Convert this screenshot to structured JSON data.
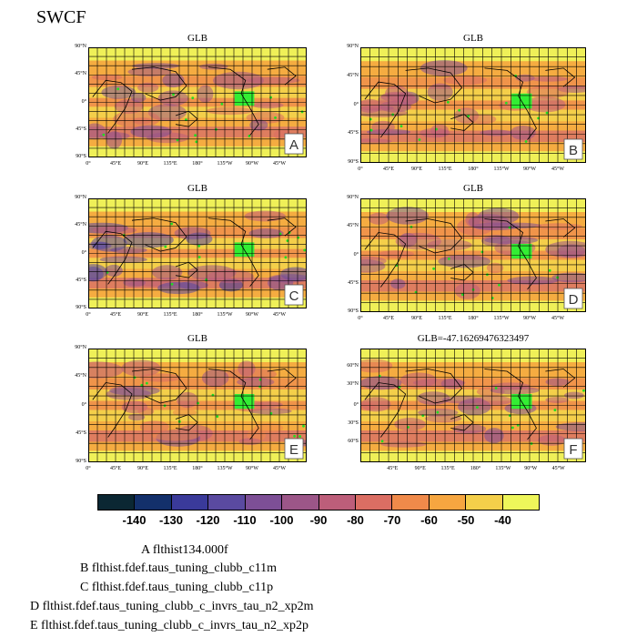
{
  "title": "SWCF",
  "panels": [
    {
      "id": "A",
      "title": "GLB"
    },
    {
      "id": "B",
      "title": "GLB"
    },
    {
      "id": "C",
      "title": "GLB"
    },
    {
      "id": "D",
      "title": "GLB"
    },
    {
      "id": "E",
      "title": "GLB"
    },
    {
      "id": "F",
      "title": "GLB=-47.16269476323497"
    }
  ],
  "lat_labels": [
    "90°N",
    "45°N",
    "0°",
    "45°S",
    "90°S"
  ],
  "lat_labels_f": [
    "60°N",
    "30°N",
    "0°",
    "30°S",
    "60°S"
  ],
  "lon_labels": [
    "0°",
    "45°E",
    "90°E",
    "135°E",
    "180°",
    "135°W",
    "90°W",
    "45°W"
  ],
  "lon_labels_f": [
    "45°E",
    "90°E",
    "135°E",
    "180°",
    "135°W",
    "90°W",
    "45°W"
  ],
  "colorbar": {
    "colors": [
      "#0b2733",
      "#13306b",
      "#3a3a9a",
      "#5a4aa0",
      "#7d4f96",
      "#9c5688",
      "#bd5e7a",
      "#db6e63",
      "#f08a4a",
      "#f6a640",
      "#f4cf4a",
      "#eef65a"
    ],
    "labels": [
      "-140",
      "-130",
      "-120",
      "-110",
      "-100",
      "-90",
      "-80",
      "-70",
      "-60",
      "-50",
      "-40"
    ]
  },
  "captions": [
    {
      "letter": "A",
      "text": "A  flthist134.000f"
    },
    {
      "letter": "B",
      "text": "B  flthist.fdef.taus_tuning_clubb_c11m"
    },
    {
      "letter": "C",
      "text": "C  flthist.fdef.taus_tuning_clubb_c11p"
    },
    {
      "letter": "D",
      "text": "D  flthist.fdef.taus_tuning_clubb_c_invrs_tau_n2_xp2m"
    },
    {
      "letter": "E",
      "text": "E  flthist.fdef.taus_tuning_clubb_c_invrs_tau_n2_xp2p"
    }
  ]
}
